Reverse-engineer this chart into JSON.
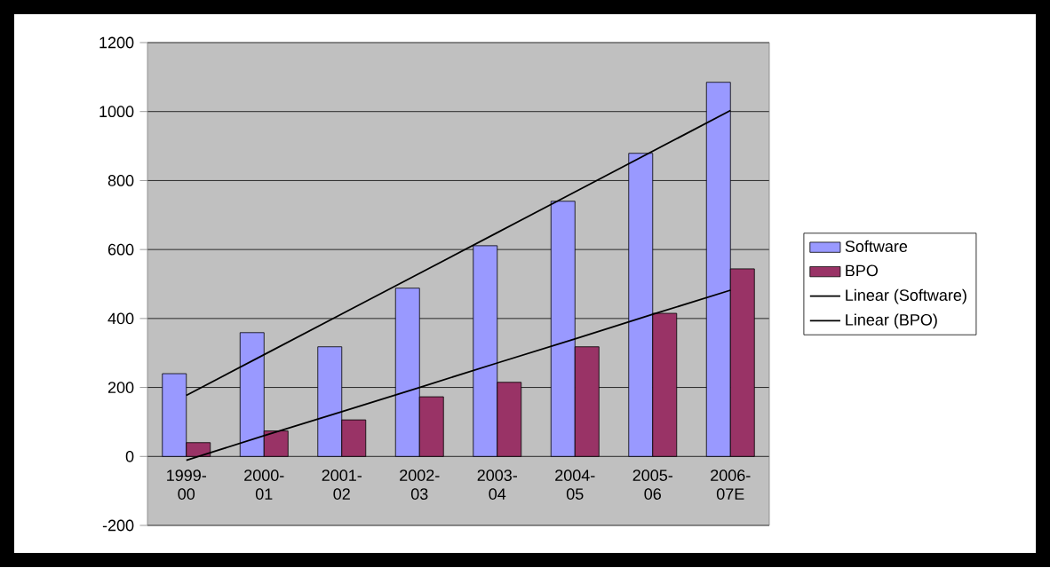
{
  "chart_data": {
    "type": "bar",
    "categories": [
      "1999-00",
      "2000-01",
      "2001-02",
      "2002-03",
      "2003-04",
      "2004-05",
      "2005-06",
      "2006-07E"
    ],
    "series": [
      {
        "name": "Software",
        "color": "#9999ff",
        "values": [
          240,
          359,
          318,
          488,
          611,
          740,
          879,
          1085
        ]
      },
      {
        "name": "BPO",
        "color": "#993366",
        "values": [
          40,
          74,
          106,
          173,
          215,
          318,
          415,
          544
        ]
      },
      {
        "name": "Linear (Software)",
        "type": "line",
        "color": "#000000",
        "values": [
          177,
          295,
          413,
          531,
          649,
          767,
          885,
          1003
        ]
      },
      {
        "name": "Linear (BPO)",
        "type": "line",
        "color": "#000000",
        "values": [
          -11,
          60,
          130,
          200,
          271,
          341,
          412,
          482
        ]
      }
    ],
    "ylim": [
      -200,
      1200
    ],
    "yticks": [
      -200,
      0,
      200,
      400,
      600,
      800,
      1000,
      1200
    ],
    "grid": "y",
    "legend": "right"
  }
}
